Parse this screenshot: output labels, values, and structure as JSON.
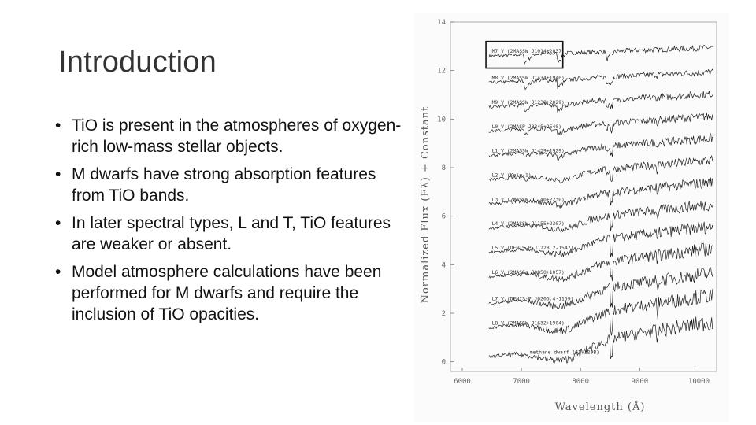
{
  "slide": {
    "title": "Introduction",
    "bullets": [
      "TiO is present in the atmospheres of oxygen-rich low-mass stellar objects.",
      "M dwarfs have strong absorption features from TiO bands.",
      "In later spectral types, L and T, TiO features are weaker or absent.",
      "Model atmosphere calculations have been performed for M dwarfs and require the inclusion of TiO opacities."
    ]
  },
  "figure": {
    "x_label": "Wavelength (Å)",
    "y_label": "Normalized Flux (Fλ) + Constant",
    "x_ticks": [
      "6000",
      "7000",
      "8000",
      "9000",
      "10000"
    ],
    "y_ticks": [
      "0",
      "2",
      "4",
      "6",
      "8",
      "10",
      "12",
      "14"
    ],
    "spectra": [
      {
        "label": "M7 V (2MASSW J1014+2037)",
        "offset": 12.6
      },
      {
        "label": "M8 V (2MASSW J1434+1940)",
        "offset": 11.5
      },
      {
        "label": "M9 V (2MASSW J1239+2029)",
        "offset": 10.5
      },
      {
        "label": "L0 V (2MASP J0345+2540)",
        "offset": 9.5
      },
      {
        "label": "L1 V (2MASSW J1439+1929)",
        "offset": 8.5
      },
      {
        "label": "L2 V (Kelu-1)",
        "offset": 7.5
      },
      {
        "label": "L3 V (2MASSW J1146+2230)",
        "offset": 6.5
      },
      {
        "label": "L4 V (2MASSW J1155+2307)",
        "offset": 5.5
      },
      {
        "label": "L5 V (DENIS-P J1228.2-1547)",
        "offset": 4.5
      },
      {
        "label": "L6 V (2MASSs J0850+1057)",
        "offset": 3.5
      },
      {
        "label": "L7 V (DENIS-P J0205.4-1159)",
        "offset": 2.4
      },
      {
        "label": "L8 V (2MASSW J1632+1904)",
        "offset": 1.4
      },
      {
        "label": "methane dwarf (Gl 229B)",
        "offset": 0.2
      }
    ],
    "highlight": {
      "x_range": [
        6400,
        7700
      ],
      "y_range": [
        12.1,
        13.2
      ]
    }
  }
}
